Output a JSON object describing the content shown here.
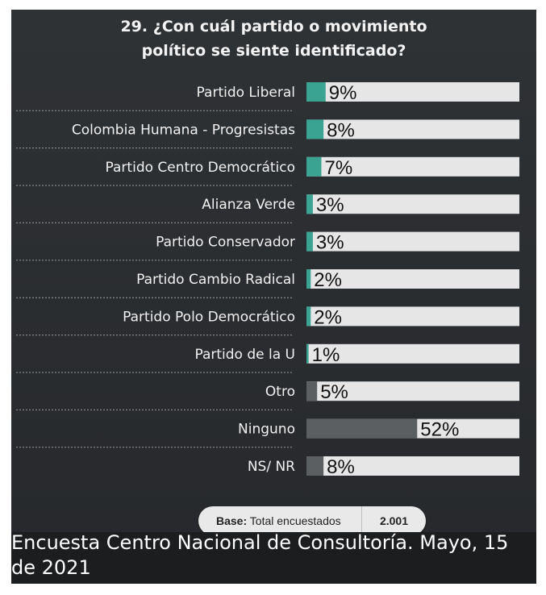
{
  "title": {
    "line1": "29. ¿Con cuál partido o movimiento",
    "line2": "político se siente identificado?"
  },
  "colors": {
    "background": "#2b2e31",
    "bar_track": "#e6e6e6",
    "party_fill": "#3aa392",
    "other_fill": "#5c5f61",
    "text": "#f1f1f1"
  },
  "chart_data": {
    "type": "bar",
    "orientation": "horizontal",
    "title": "29. ¿Con cuál partido o movimiento político se siente identificado?",
    "xlabel": "",
    "ylabel": "",
    "xlim": [
      0,
      100
    ],
    "grid": false,
    "categories": [
      "Partido Liberal",
      "Colombia Humana - Progresistas",
      "Partido Centro Democrático",
      "Alianza Verde",
      "Partido Conservador",
      "Partido Cambio Radical",
      "Partido Polo Democrático",
      "Partido de la U",
      "Otro",
      "Ninguno",
      "NS/ NR"
    ],
    "values": [
      9,
      8,
      7,
      3,
      3,
      2,
      2,
      1,
      5,
      52,
      8
    ],
    "value_labels": [
      "9%",
      "8%",
      "7%",
      "3%",
      "3%",
      "2%",
      "2%",
      "1%",
      "5%",
      "52%",
      "8%"
    ],
    "bar_colors": [
      "#3aa392",
      "#3aa392",
      "#3aa392",
      "#3aa392",
      "#3aa392",
      "#3aa392",
      "#3aa392",
      "#3aa392",
      "#5c5f61",
      "#5c5f61",
      "#5c5f61"
    ]
  },
  "base": {
    "label_bold": "Base:",
    "label_text": "Total encuestados",
    "value": "2.001"
  },
  "caption": "Encuesta Centro Nacional de Consultoría. Mayo, 15 de 2021"
}
